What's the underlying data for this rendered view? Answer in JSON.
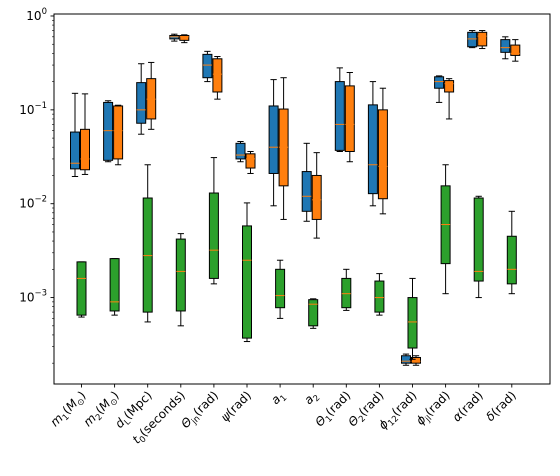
{
  "chart_data": {
    "type": "boxplot",
    "yscale": "log",
    "ylim": [
      0.00012,
      1.05
    ],
    "grid": false,
    "legend": "none",
    "ytick_labels": [
      {
        "base": "10",
        "exp": "0",
        "value": 1
      },
      {
        "base": "10",
        "exp": "−1",
        "value": 0.1
      },
      {
        "base": "10",
        "exp": "−2",
        "value": 0.01
      },
      {
        "base": "10",
        "exp": "−3",
        "value": 0.001
      }
    ],
    "categories": [
      {
        "label": "m",
        "sub": "1",
        "unit": "M",
        "unit_sub": "⊙"
      },
      {
        "label": "m",
        "sub": "2",
        "unit": "M",
        "unit_sub": "⊙"
      },
      {
        "label": "d",
        "sub": "L",
        "unit": "Mpc"
      },
      {
        "label": "t",
        "sub": "0",
        "unit": "seconds"
      },
      {
        "label": "Θ",
        "sub": "jn",
        "unit": "rad"
      },
      {
        "label": "ψ",
        "sub": "",
        "unit": "rad"
      },
      {
        "label": "a",
        "sub": "1",
        "unit": ""
      },
      {
        "label": "a",
        "sub": "2",
        "unit": ""
      },
      {
        "label": "Θ",
        "sub": "1",
        "unit": "rad"
      },
      {
        "label": "Θ",
        "sub": "2",
        "unit": "rad"
      },
      {
        "label": "ϕ",
        "sub": "12",
        "unit": "rad"
      },
      {
        "label": "ϕ",
        "sub": "jl",
        "unit": "rad"
      },
      {
        "label": "α",
        "sub": "",
        "unit": "rad"
      },
      {
        "label": "δ",
        "sub": "",
        "unit": "rad"
      }
    ],
    "series": [
      {
        "color": "#1f77b4",
        "boxes": [
          {
            "wlo": 0.0195,
            "q1": 0.0235,
            "med": 0.027,
            "q3": 0.058,
            "whi": 0.15
          },
          {
            "wlo": 0.028,
            "q1": 0.029,
            "med": 0.06,
            "q3": 0.12,
            "whi": 0.125
          },
          {
            "wlo": 0.055,
            "q1": 0.072,
            "med": 0.1,
            "q3": 0.195,
            "whi": 0.31
          },
          {
            "wlo": 0.54,
            "q1": 0.57,
            "med": 0.6,
            "q3": 0.62,
            "whi": 0.64
          },
          {
            "wlo": 0.2,
            "q1": 0.22,
            "med": 0.3,
            "q3": 0.39,
            "whi": 0.42
          },
          {
            "wlo": 0.028,
            "q1": 0.03,
            "med": 0.033,
            "q3": 0.044,
            "whi": 0.046
          },
          {
            "wlo": 0.0095,
            "q1": 0.021,
            "med": 0.04,
            "q3": 0.11,
            "whi": 0.21
          },
          {
            "wlo": 0.0065,
            "q1": 0.0083,
            "med": 0.012,
            "q3": 0.022,
            "whi": 0.044
          },
          {
            "wlo": 0.036,
            "q1": 0.037,
            "med": 0.07,
            "q3": 0.2,
            "whi": 0.28
          },
          {
            "wlo": 0.0095,
            "q1": 0.0128,
            "med": 0.026,
            "q3": 0.113,
            "whi": 0.2
          },
          {
            "wlo": 0.00019,
            "q1": 0.0002,
            "med": 0.00021,
            "q3": 0.00024,
            "whi": 0.00025
          },
          {
            "wlo": 0.12,
            "q1": 0.17,
            "med": 0.2,
            "q3": 0.225,
            "whi": 0.23
          },
          {
            "wlo": 0.46,
            "q1": 0.47,
            "med": 0.57,
            "q3": 0.67,
            "whi": 0.7
          },
          {
            "wlo": 0.35,
            "q1": 0.41,
            "med": 0.46,
            "q3": 0.56,
            "whi": 0.6
          }
        ]
      },
      {
        "color": "#ff7f0e",
        "boxes": [
          {
            "wlo": 0.0205,
            "q1": 0.023,
            "med": 0.03,
            "q3": 0.062,
            "whi": 0.148
          },
          {
            "wlo": 0.026,
            "q1": 0.03,
            "med": 0.06,
            "q3": 0.11,
            "whi": 0.112
          },
          {
            "wlo": 0.062,
            "q1": 0.08,
            "med": 0.13,
            "q3": 0.215,
            "whi": 0.32
          },
          {
            "wlo": 0.52,
            "q1": 0.55,
            "med": 0.6,
            "q3": 0.62,
            "whi": 0.63
          },
          {
            "wlo": 0.13,
            "q1": 0.155,
            "med": 0.24,
            "q3": 0.35,
            "whi": 0.37
          },
          {
            "wlo": 0.021,
            "q1": 0.024,
            "med": 0.03,
            "q3": 0.034,
            "whi": 0.036
          },
          {
            "wlo": 0.0068,
            "q1": 0.0155,
            "med": 0.04,
            "q3": 0.102,
            "whi": 0.22
          },
          {
            "wlo": 0.0043,
            "q1": 0.0068,
            "med": 0.011,
            "q3": 0.02,
            "whi": 0.035
          },
          {
            "wlo": 0.028,
            "q1": 0.036,
            "med": 0.07,
            "q3": 0.18,
            "whi": 0.25
          },
          {
            "wlo": 0.0078,
            "q1": 0.0113,
            "med": 0.025,
            "q3": 0.1,
            "whi": 0.17
          },
          {
            "wlo": 0.00019,
            "q1": 0.0002,
            "med": 0.00021,
            "q3": 0.00023,
            "whi": 0.00024
          },
          {
            "wlo": 0.08,
            "q1": 0.155,
            "med": 0.19,
            "q3": 0.205,
            "whi": 0.215
          },
          {
            "wlo": 0.45,
            "q1": 0.48,
            "med": 0.61,
            "q3": 0.67,
            "whi": 0.7
          },
          {
            "wlo": 0.33,
            "q1": 0.38,
            "med": 0.4,
            "q3": 0.49,
            "whi": 0.56
          }
        ]
      },
      {
        "color": "#2ca02c",
        "boxes": [
          {
            "wlo": 0.00062,
            "q1": 0.00065,
            "med": 0.0016,
            "q3": 0.0024,
            "whi": 0.0024
          },
          {
            "wlo": 0.00065,
            "q1": 0.00072,
            "med": 0.0009,
            "q3": 0.0026,
            "whi": 0.0026
          },
          {
            "wlo": 0.00055,
            "q1": 0.0007,
            "med": 0.0028,
            "q3": 0.0115,
            "whi": 0.026
          },
          {
            "wlo": 0.0005,
            "q1": 0.00072,
            "med": 0.0019,
            "q3": 0.0042,
            "whi": 0.0048
          },
          {
            "wlo": 0.0014,
            "q1": 0.0016,
            "med": 0.0032,
            "q3": 0.013,
            "whi": 0.031
          },
          {
            "wlo": 0.00034,
            "q1": 0.00037,
            "med": 0.0025,
            "q3": 0.0058,
            "whi": 0.0102
          },
          {
            "wlo": 0.0006,
            "q1": 0.00078,
            "med": 0.00105,
            "q3": 0.002,
            "whi": 0.0025
          },
          {
            "wlo": 0.00047,
            "q1": 0.0005,
            "med": 0.00085,
            "q3": 0.00095,
            "whi": 0.00097
          },
          {
            "wlo": 0.00073,
            "q1": 0.00078,
            "med": 0.0011,
            "q3": 0.0016,
            "whi": 0.002
          },
          {
            "wlo": 0.00065,
            "q1": 0.0007,
            "med": 0.001,
            "q3": 0.0015,
            "whi": 0.0018
          },
          {
            "wlo": 0.00022,
            "q1": 0.00029,
            "med": 0.00055,
            "q3": 0.001,
            "whi": 0.0016
          },
          {
            "wlo": 0.0011,
            "q1": 0.0023,
            "med": 0.006,
            "q3": 0.0155,
            "whi": 0.026
          },
          {
            "wlo": 0.001,
            "q1": 0.0015,
            "med": 0.0019,
            "q3": 0.0115,
            "whi": 0.012
          },
          {
            "wlo": 0.0011,
            "q1": 0.0014,
            "med": 0.002,
            "q3": 0.0045,
            "whi": 0.0083
          }
        ]
      }
    ],
    "median_line_color": "#ff7f0e",
    "box_edge_color": "#000000"
  }
}
